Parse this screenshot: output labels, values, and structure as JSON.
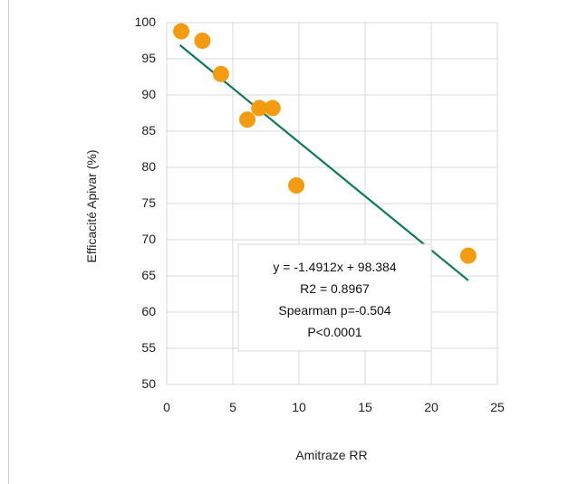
{
  "chart_data": {
    "type": "scatter",
    "xlabel": "Amitraze RR",
    "ylabel": "Efficacité Apivar (%)",
    "xlim": [
      0,
      25
    ],
    "ylim": [
      50,
      100
    ],
    "x_ticks": [
      "0",
      "5",
      "10",
      "15",
      "20",
      "25"
    ],
    "y_ticks": [
      "50",
      "55",
      "60",
      "65",
      "70",
      "75",
      "80",
      "85",
      "90",
      "95",
      "100"
    ],
    "grid": true,
    "series": [
      {
        "points": [
          {
            "x": 1.1,
            "y": 98.8
          },
          {
            "x": 2.7,
            "y": 97.5
          },
          {
            "x": 4.1,
            "y": 92.9
          },
          {
            "x": 6.1,
            "y": 86.6
          },
          {
            "x": 7.0,
            "y": 88.2
          },
          {
            "x": 8.0,
            "y": 88.2
          },
          {
            "x": 9.8,
            "y": 77.5
          },
          {
            "x": 22.8,
            "y": 67.8
          }
        ]
      }
    ],
    "trendline": {
      "slope": -1.4912,
      "intercept": 98.384,
      "x_range": [
        1.0,
        22.8
      ]
    },
    "annotation": [
      "y = -1.4912x + 98.384",
      "R2 = 0.8967",
      "Spearman p=-0.504",
      "P<0.0001"
    ],
    "colors": {
      "points": "#f39c12",
      "trendline": "#0e7a5a",
      "grid": "#d9d9d9",
      "annotation_border": "#d9d9d9"
    }
  }
}
